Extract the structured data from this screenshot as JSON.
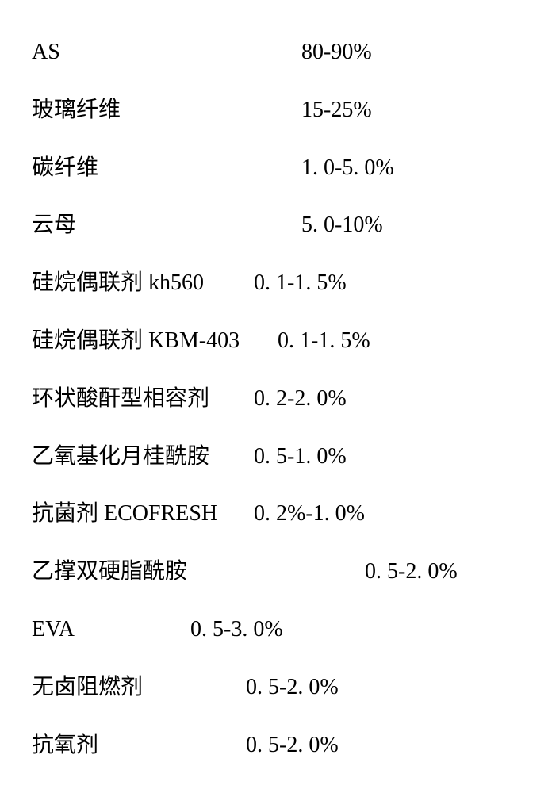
{
  "rows": [
    {
      "label": "AS",
      "value": "80-90%",
      "label_width": "340px"
    },
    {
      "label": "玻璃纤维",
      "value": "15-25%",
      "label_width": "340px"
    },
    {
      "label": "碳纤维",
      "value": "1. 0-5. 0%",
      "label_width": "340px"
    },
    {
      "label": "云母",
      "value": "5. 0-10%",
      "label_width": "340px"
    },
    {
      "label": "硅烷偶联剂 kh560",
      "value": "0. 1-1. 5%",
      "label_width": "280px"
    },
    {
      "label": "硅烷偶联剂 KBM-403",
      "value": "0. 1-1. 5%",
      "label_width": "310px"
    },
    {
      "label": "环状酸酐型相容剂",
      "value": "0. 2-2. 0%",
      "label_width": "280px"
    },
    {
      "label": "乙氧基化月桂酰胺",
      "value": "0. 5-1. 0%",
      "label_width": "280px"
    },
    {
      "label": "抗菌剂 ECOFRESH",
      "value": "0. 2%-1. 0%",
      "label_width": "280px"
    },
    {
      "label": "乙撑双硬脂酰胺",
      "value": "0. 5-2. 0%",
      "label_width": "420px"
    },
    {
      "label": "EVA",
      "value": "0. 5-3. 0%",
      "label_width": "200px"
    },
    {
      "label": "无卤阻燃剂",
      "value": "0. 5-2. 0%",
      "label_width": "270px"
    },
    {
      "label": "抗氧剂",
      "value": "0. 5-2. 0%",
      "label_width": "270px"
    }
  ],
  "style": {
    "background_color": "#ffffff",
    "text_color": "#000000",
    "font_family": "SimSun",
    "font_size_pt": 21,
    "line_height": 2.6
  }
}
